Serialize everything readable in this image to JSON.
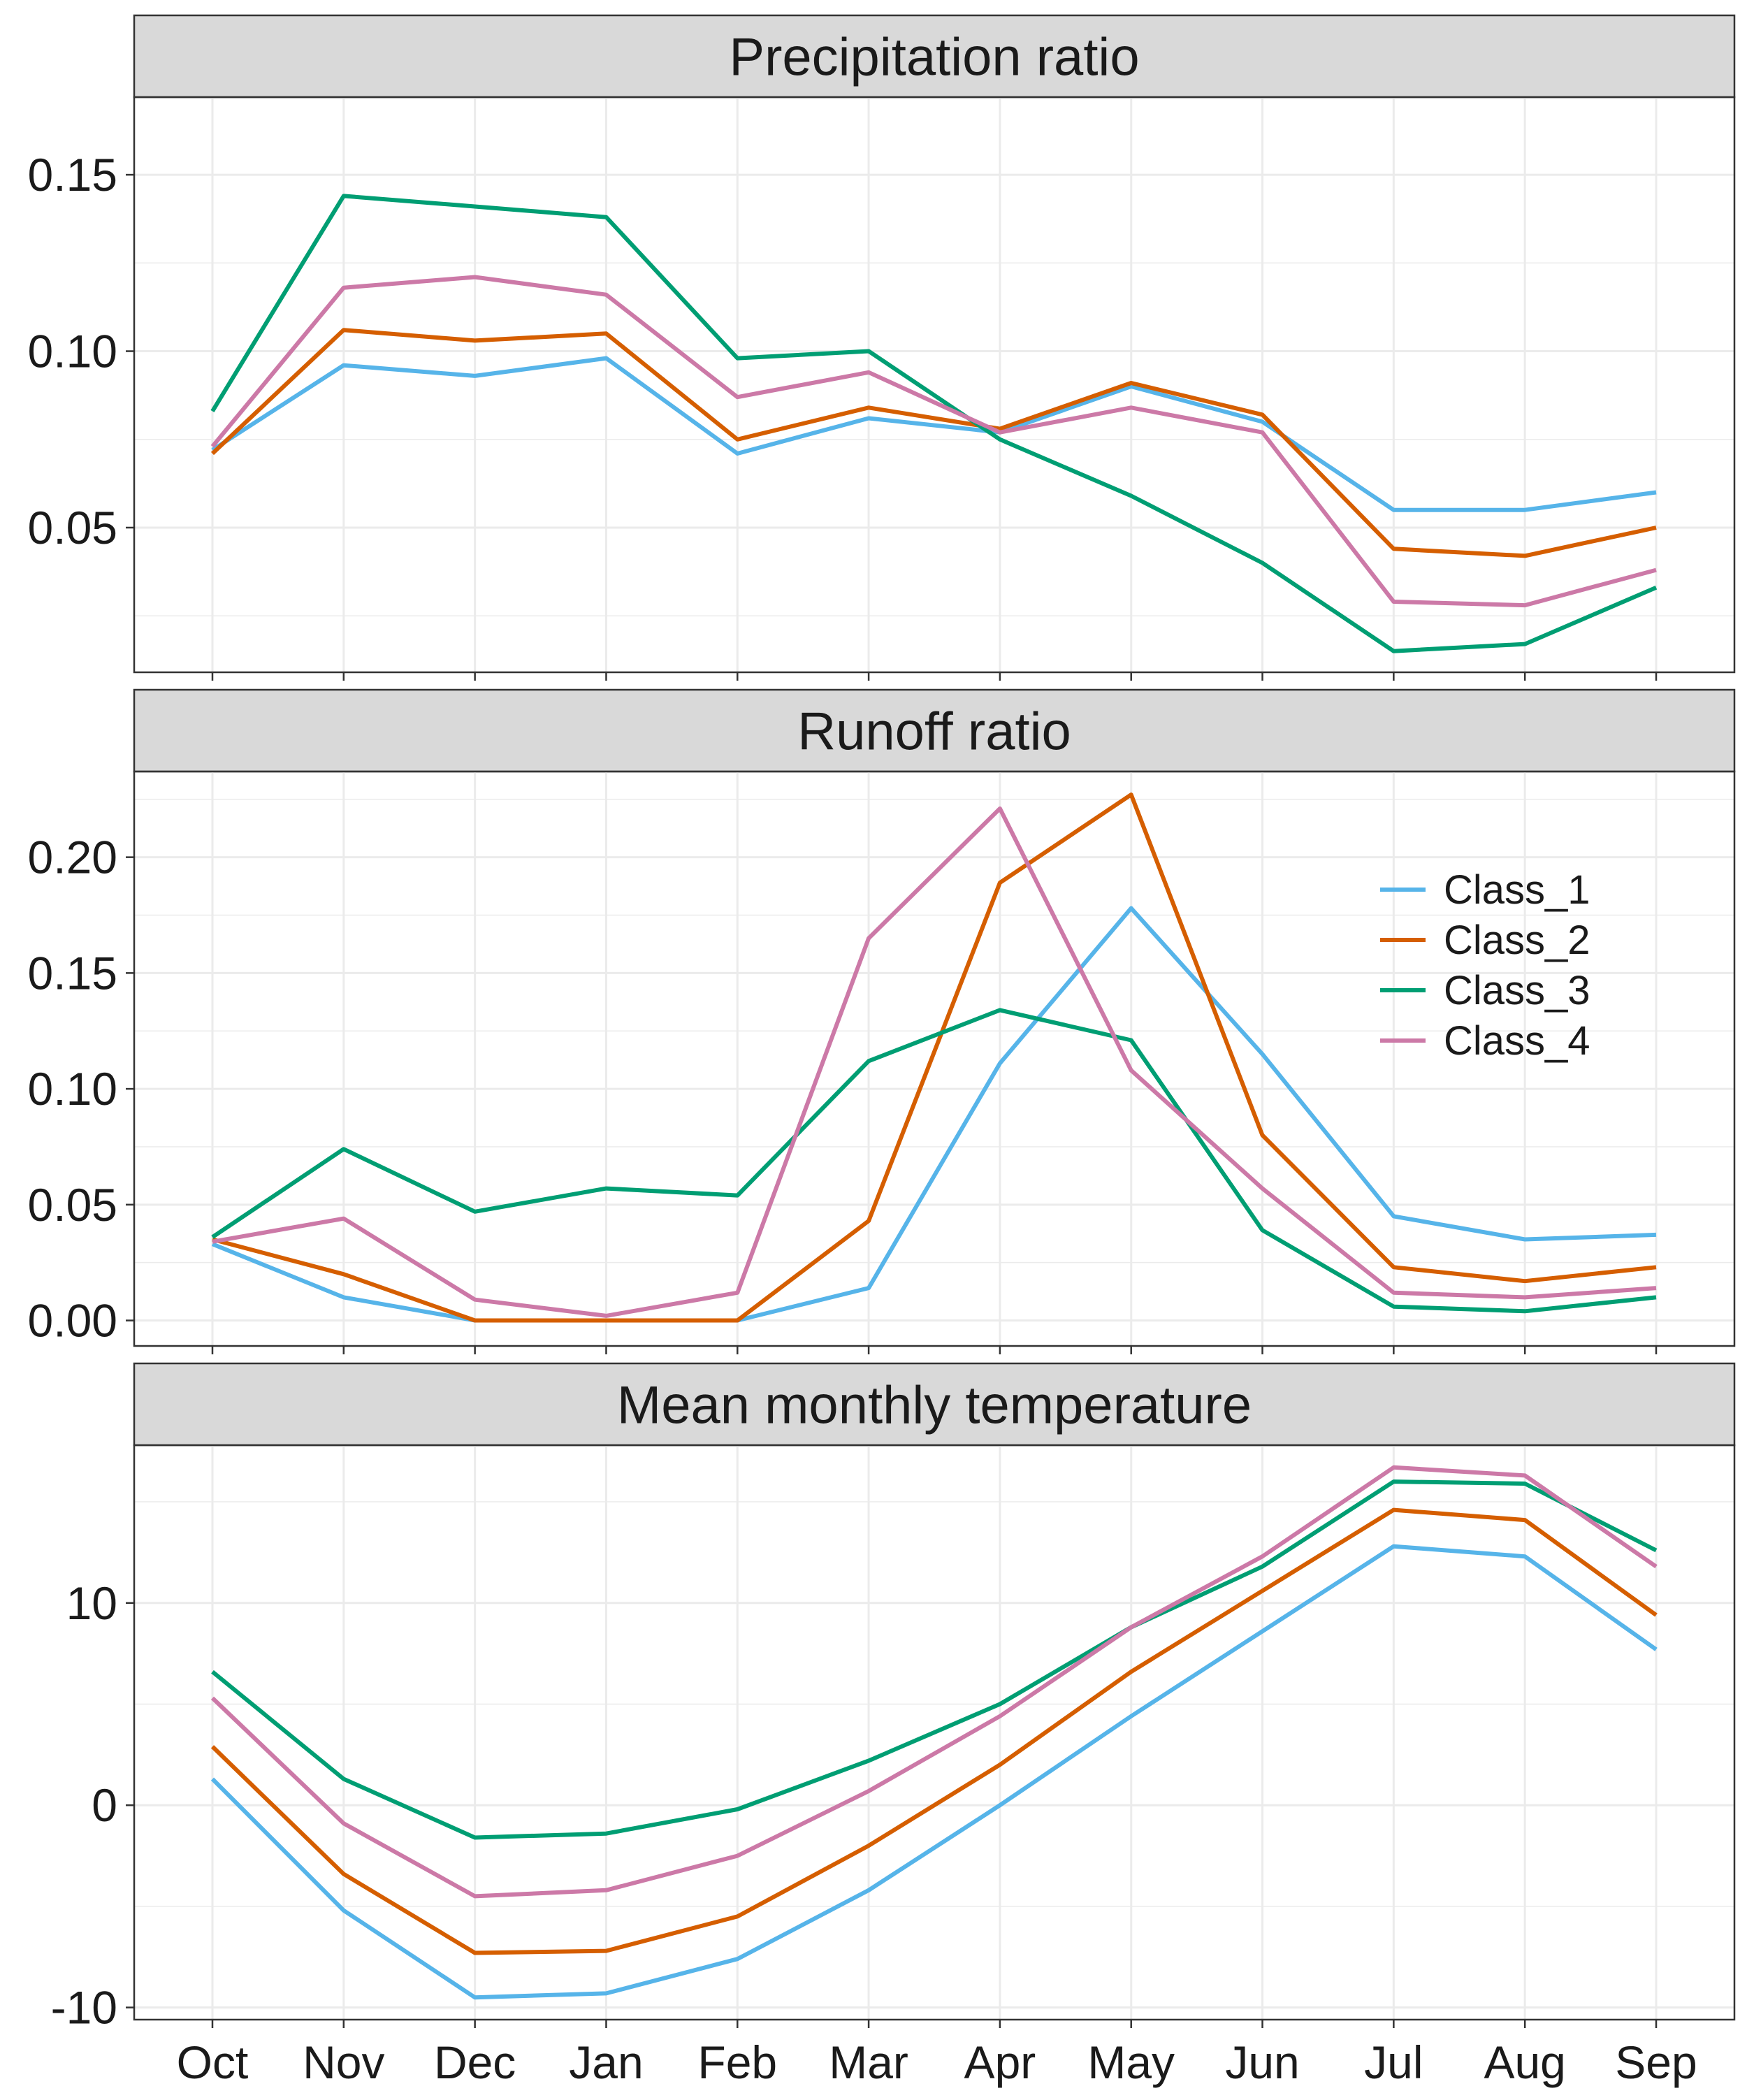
{
  "chart_data": {
    "type": "line",
    "categories": [
      "Oct",
      "Nov",
      "Dec",
      "Jan",
      "Feb",
      "Mar",
      "Apr",
      "May",
      "Jun",
      "Jul",
      "Aug",
      "Sep"
    ],
    "legend": {
      "placement": "inside-top-right of middle panel",
      "entries": [
        "Class_1",
        "Class_2",
        "Class_3",
        "Class_4"
      ]
    },
    "colors": {
      "Class_1": "#56B4E9",
      "Class_2": "#D55E00",
      "Class_3": "#009E73",
      "Class_4": "#CC79A7",
      "strip_fill": "#D9D9D9",
      "grid": "#EBEBEB"
    },
    "grid": true,
    "panels": [
      {
        "title": "Precipitation ratio",
        "ylim": [
          0.009,
          0.172
        ],
        "yticks": [
          0.05,
          0.1,
          0.15
        ],
        "ytick_labels": [
          "0.05",
          "0.10",
          "0.15"
        ],
        "series": [
          {
            "name": "Class_1",
            "values": [
              0.072,
              0.096,
              0.093,
              0.098,
              0.071,
              0.081,
              0.077,
              0.09,
              0.08,
              0.055,
              0.055,
              0.06
            ]
          },
          {
            "name": "Class_2",
            "values": [
              0.071,
              0.106,
              0.103,
              0.105,
              0.075,
              0.084,
              0.078,
              0.091,
              0.082,
              0.044,
              0.042,
              0.05
            ]
          },
          {
            "name": "Class_3",
            "values": [
              0.083,
              0.144,
              0.141,
              0.138,
              0.098,
              0.1,
              0.075,
              0.059,
              0.04,
              0.015,
              0.017,
              0.033
            ]
          },
          {
            "name": "Class_4",
            "values": [
              0.073,
              0.118,
              0.121,
              0.116,
              0.087,
              0.094,
              0.077,
              0.084,
              0.077,
              0.029,
              0.028,
              0.038
            ]
          }
        ]
      },
      {
        "title": "Runoff ratio",
        "ylim": [
          -0.011,
          0.237
        ],
        "yticks": [
          0.0,
          0.05,
          0.1,
          0.15,
          0.2
        ],
        "ytick_labels": [
          "0.00",
          "0.05",
          "0.10",
          "0.15",
          "0.20"
        ],
        "series": [
          {
            "name": "Class_1",
            "values": [
              0.033,
              0.01,
              0.0,
              0.0,
              0.0,
              0.014,
              0.111,
              0.178,
              0.115,
              0.045,
              0.035,
              0.037
            ]
          },
          {
            "name": "Class_2",
            "values": [
              0.035,
              0.02,
              0.0,
              0.0,
              0.0,
              0.043,
              0.189,
              0.227,
              0.08,
              0.023,
              0.017,
              0.023
            ]
          },
          {
            "name": "Class_3",
            "values": [
              0.036,
              0.074,
              0.047,
              0.057,
              0.054,
              0.112,
              0.134,
              0.121,
              0.039,
              0.006,
              0.004,
              0.01
            ]
          },
          {
            "name": "Class_4",
            "values": [
              0.034,
              0.044,
              0.009,
              0.002,
              0.012,
              0.165,
              0.221,
              0.108,
              0.057,
              0.012,
              0.01,
              0.014
            ]
          }
        ]
      },
      {
        "title": "Mean monthly temperature",
        "ylim": [
          -10.6,
          17.8
        ],
        "yticks": [
          -10,
          0,
          10
        ],
        "ytick_labels": [
          "-10",
          "0",
          "10"
        ],
        "series": [
          {
            "name": "Class_1",
            "values": [
              1.3,
              -5.2,
              -9.5,
              -9.3,
              -7.6,
              -4.2,
              0.0,
              4.4,
              8.6,
              12.8,
              12.3,
              7.7
            ]
          },
          {
            "name": "Class_2",
            "values": [
              2.9,
              -3.4,
              -7.3,
              -7.2,
              -5.5,
              -2.0,
              2.0,
              6.6,
              10.6,
              14.6,
              14.1,
              9.4
            ]
          },
          {
            "name": "Class_3",
            "values": [
              6.6,
              1.3,
              -1.6,
              -1.4,
              -0.2,
              2.2,
              5.0,
              8.8,
              11.8,
              16.0,
              15.9,
              12.6
            ]
          },
          {
            "name": "Class_4",
            "values": [
              5.3,
              -0.9,
              -4.5,
              -4.2,
              -2.5,
              0.7,
              4.4,
              8.8,
              12.3,
              16.7,
              16.3,
              11.8
            ]
          }
        ]
      }
    ]
  }
}
